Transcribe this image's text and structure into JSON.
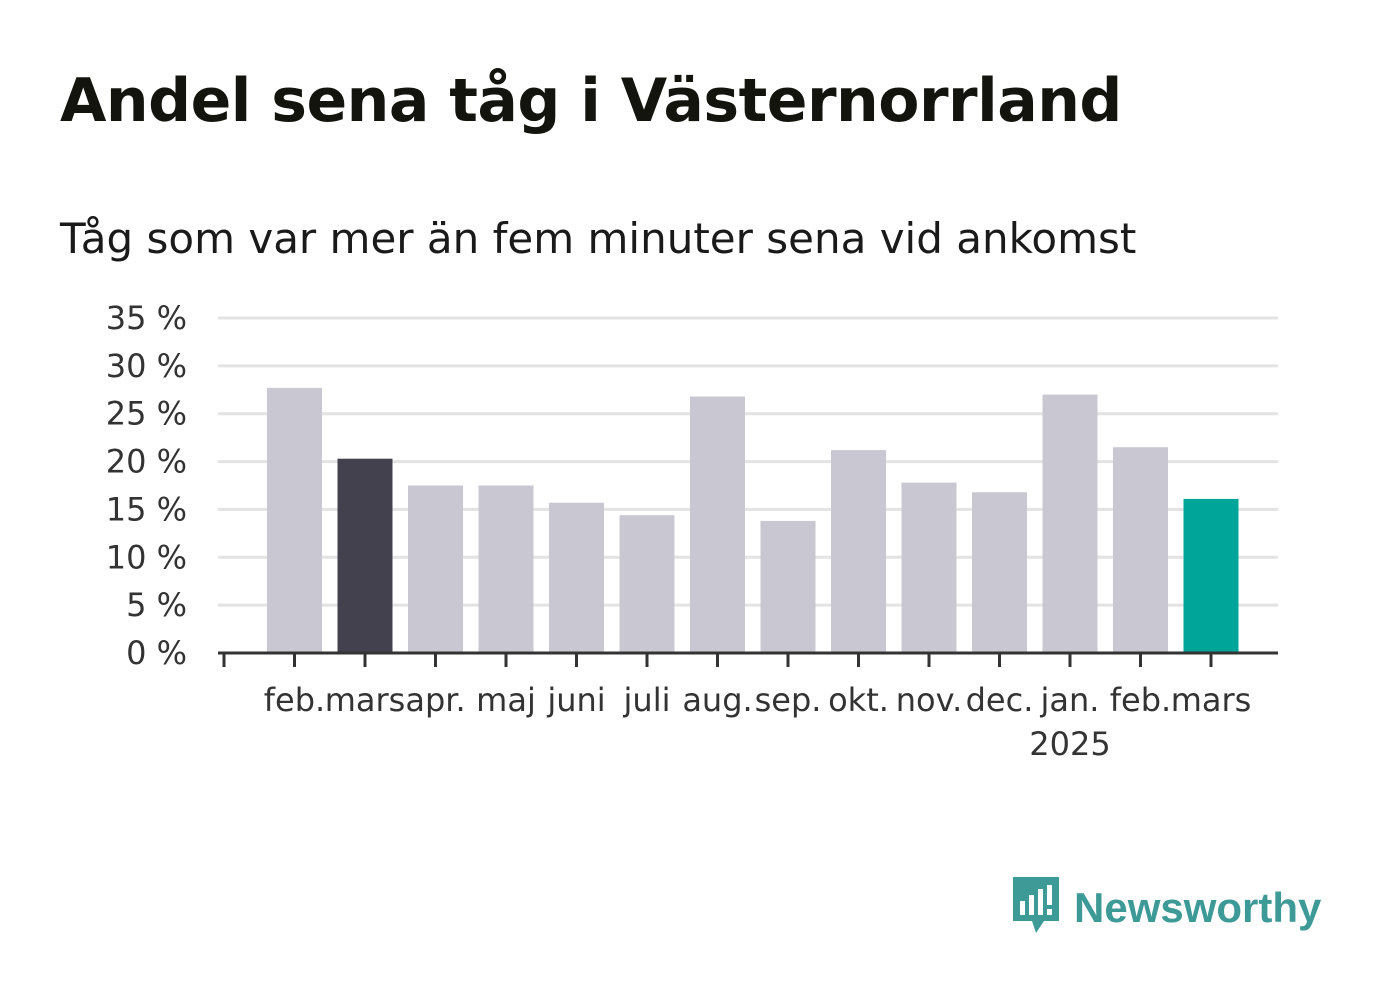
{
  "title": "Andel sena tåg i Västernorrland",
  "subtitle": "Tåg som var mer än fem minuter sena vid ankomst",
  "brand": {
    "name": "Newsworthy",
    "icon": "newsworthy-logo-icon"
  },
  "colors": {
    "default_bar": "#c9c8d2",
    "highlight_bar": "#43414e",
    "current_bar": "#00a59a",
    "gridline": "#e3e3e3",
    "axis": "#333333"
  },
  "chart_data": {
    "type": "bar",
    "title": "Andel sena tåg i Västernorrland",
    "subtitle": "Tåg som var mer än fem minuter sena vid ankomst",
    "xlabel": "",
    "ylabel": "",
    "ylim": [
      0,
      35
    ],
    "yticks": [
      0,
      5,
      10,
      15,
      20,
      25,
      30,
      35
    ],
    "ytick_labels": [
      "0 %",
      "5 %",
      "10 %",
      "15 %",
      "20 %",
      "25 %",
      "30 %",
      "35 %"
    ],
    "grid": true,
    "legend": "none",
    "categories": [
      "feb.",
      "mars",
      "apr.",
      "maj",
      "juni",
      "juli",
      "aug.",
      "sep.",
      "okt.",
      "nov.",
      "dec.",
      "jan.",
      "feb.",
      "mars"
    ],
    "category_sublabels": [
      "",
      "",
      "",
      "",
      "",
      "",
      "",
      "",
      "",
      "",
      "",
      "2025",
      "",
      ""
    ],
    "values": [
      27.7,
      20.3,
      17.5,
      17.5,
      15.7,
      14.4,
      26.8,
      13.8,
      21.2,
      17.8,
      16.8,
      27.0,
      21.5,
      16.1
    ],
    "bar_styles": [
      "default",
      "highlight",
      "default",
      "default",
      "default",
      "default",
      "default",
      "default",
      "default",
      "default",
      "default",
      "default",
      "default",
      "current"
    ]
  }
}
